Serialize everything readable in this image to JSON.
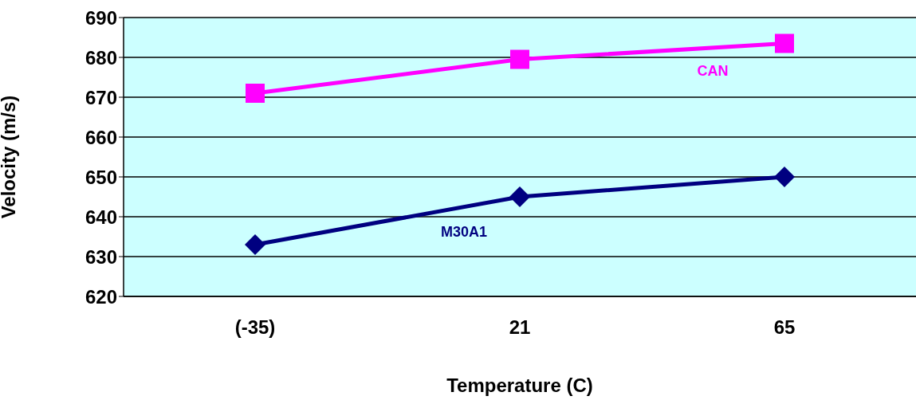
{
  "chart_data": {
    "type": "line",
    "xlabel": "Temperature (C)",
    "ylabel": "Velocity (m/s)",
    "categories": [
      "(-35)",
      "21",
      "65"
    ],
    "series": [
      {
        "name": "CAN",
        "color": "#ff00ff",
        "marker": "square",
        "values": [
          671,
          679.5,
          683.5
        ]
      },
      {
        "name": "M30A1",
        "color": "#000080",
        "marker": "diamond",
        "values": [
          633,
          645,
          650
        ]
      }
    ],
    "ylim": [
      620,
      690
    ],
    "yticks": [
      620,
      630,
      640,
      650,
      660,
      670,
      680,
      690
    ],
    "grid": "y",
    "legend": false
  }
}
